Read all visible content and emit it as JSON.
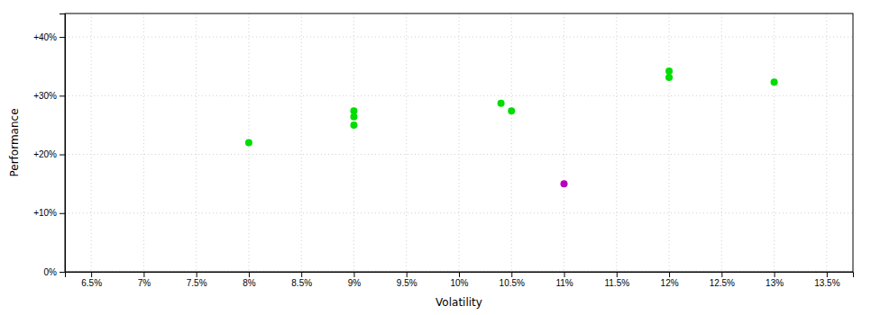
{
  "chart_data": {
    "type": "scatter",
    "xlabel": "Volatility",
    "ylabel": "Performance",
    "xlim": [
      0.0625,
      0.1375
    ],
    "ylim": [
      0.0,
      0.44
    ],
    "xticks": [
      {
        "value": 0.065,
        "label": "6.5%"
      },
      {
        "value": 0.07,
        "label": "7%"
      },
      {
        "value": 0.075,
        "label": "7.5%"
      },
      {
        "value": 0.08,
        "label": "8%"
      },
      {
        "value": 0.085,
        "label": "8.5%"
      },
      {
        "value": 0.09,
        "label": "9%"
      },
      {
        "value": 0.095,
        "label": "9.5%"
      },
      {
        "value": 0.1,
        "label": "10%"
      },
      {
        "value": 0.105,
        "label": "10.5%"
      },
      {
        "value": 0.11,
        "label": "11%"
      },
      {
        "value": 0.115,
        "label": "11.5%"
      },
      {
        "value": 0.12,
        "label": "12%"
      },
      {
        "value": 0.125,
        "label": "12.5%"
      },
      {
        "value": 0.13,
        "label": "13%"
      },
      {
        "value": 0.135,
        "label": "13.5%"
      }
    ],
    "yticks": [
      {
        "value": 0.0,
        "label": "0%"
      },
      {
        "value": 0.1,
        "label": "+10%"
      },
      {
        "value": 0.2,
        "label": "+20%"
      },
      {
        "value": 0.3,
        "label": "+30%"
      },
      {
        "value": 0.4,
        "label": "+40%"
      }
    ],
    "grid": true,
    "series": [
      {
        "color": "#00dd00",
        "x": [
          0.08,
          0.09,
          0.09,
          0.09,
          0.104,
          0.105,
          0.12,
          0.12,
          0.13
        ],
        "values": [
          0.22,
          0.25,
          0.264,
          0.274,
          0.287,
          0.274,
          0.342,
          0.331,
          0.323
        ]
      },
      {
        "color": "#bb00bb",
        "x": [
          0.11
        ],
        "values": [
          0.15
        ]
      }
    ]
  }
}
